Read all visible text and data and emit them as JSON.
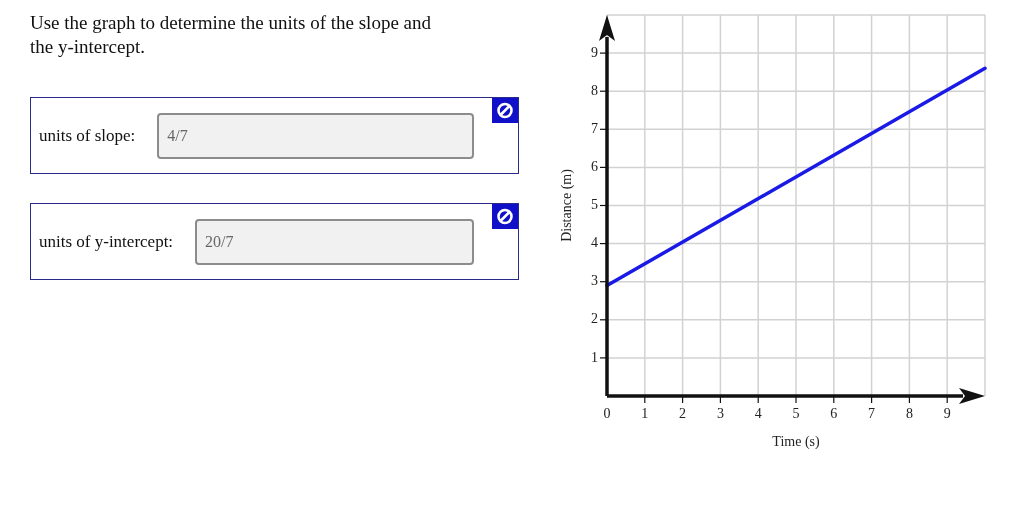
{
  "chart_data": {
    "type": "line",
    "title": "Use the graph to determine the units of the slope and the y-intercept.",
    "xlabel": "Time (s)",
    "ylabel": "Distance (m)",
    "x": [
      0,
      10
    ],
    "series": [
      {
        "color": "#1a1ae6",
        "values": [
          2.9,
          8.6
        ]
      }
    ],
    "xlim": [
      0,
      10
    ],
    "ylim": [
      0,
      10
    ],
    "xticks": [
      0,
      1,
      2,
      3,
      4,
      5,
      6,
      7,
      8,
      9
    ],
    "yticks": [
      1,
      2,
      3,
      4,
      5,
      6,
      7,
      8,
      9
    ],
    "grid": true,
    "marker": "none",
    "line_style": "solid",
    "annotations": [
      "units of slope:",
      "4/7",
      "units of y-intercept:",
      "20/7"
    ]
  }
}
